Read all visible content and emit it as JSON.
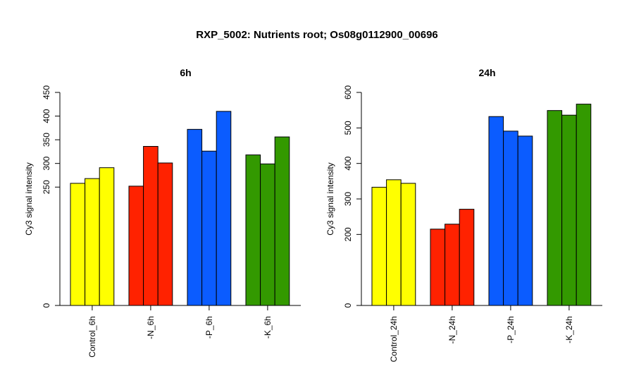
{
  "title": "RXP_5002: Nutrients root; Os08g0112900_00696",
  "chart_data": [
    {
      "type": "bar",
      "title": "6h",
      "ylabel": "Cy3 signal intensity",
      "ylim": [
        0,
        450
      ],
      "yticks": [
        0,
        250,
        300,
        350,
        400,
        450
      ],
      "groups": [
        {
          "label": "Control_6h",
          "color": "#ffff00",
          "values": [
            258,
            268,
            291
          ]
        },
        {
          "label": "-N_6h",
          "color": "#ff2200",
          "values": [
            252,
            336,
            301
          ]
        },
        {
          "label": "-P_6h",
          "color": "#0b5cff",
          "values": [
            372,
            326,
            410
          ]
        },
        {
          "label": "-K_6h",
          "color": "#339900",
          "values": [
            318,
            299,
            356
          ]
        }
      ]
    },
    {
      "type": "bar",
      "title": "24h",
      "ylabel": "Cy3 signal intensity",
      "ylim": [
        0,
        600
      ],
      "yticks": [
        0,
        200,
        300,
        400,
        500,
        600
      ],
      "groups": [
        {
          "label": "Control_24h",
          "color": "#ffff00",
          "values": [
            333,
            354,
            344
          ]
        },
        {
          "label": "-N_24h",
          "color": "#ff2200",
          "values": [
            215,
            229,
            271
          ]
        },
        {
          "label": "-P_24h",
          "color": "#0b5cff",
          "values": [
            532,
            491,
            477
          ]
        },
        {
          "label": "-K_24h",
          "color": "#339900",
          "values": [
            549,
            536,
            567
          ]
        }
      ]
    }
  ]
}
